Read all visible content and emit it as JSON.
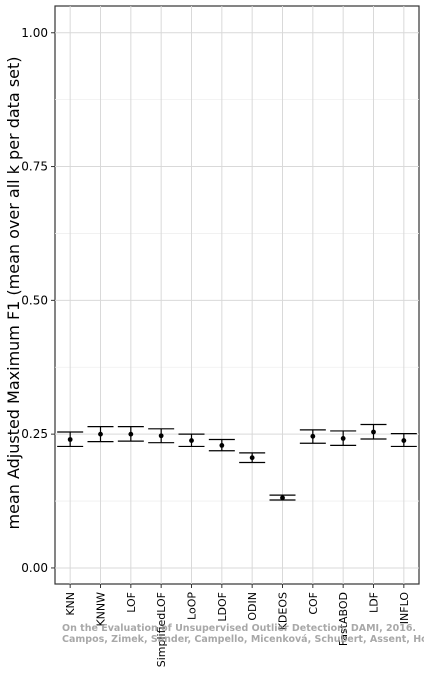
{
  "chart_data": {
    "type": "errorbar",
    "categories": [
      "KNN",
      "KNNW",
      "LOF",
      "SimplifiedLOF",
      "LoOP",
      "LDOF",
      "ODIN",
      "KDEOS",
      "COF",
      "FastABOD",
      "LDF",
      "INFLO"
    ],
    "mean": [
      0.24,
      0.25,
      0.25,
      0.247,
      0.238,
      0.229,
      0.206,
      0.131,
      0.246,
      0.242,
      0.254,
      0.238
    ],
    "lower": [
      0.227,
      0.236,
      0.237,
      0.234,
      0.227,
      0.219,
      0.197,
      0.127,
      0.233,
      0.229,
      0.241,
      0.227
    ],
    "upper": [
      0.254,
      0.264,
      0.264,
      0.26,
      0.25,
      0.24,
      0.215,
      0.136,
      0.258,
      0.256,
      0.268,
      0.251
    ],
    "ylabel": "mean Adjusted Maximum F1 (mean over all k per data set)",
    "xlabel": "",
    "ylim": [
      -0.03,
      1.05
    ],
    "yticks": [
      "0.00",
      "0.25",
      "0.50",
      "0.75",
      "1.00"
    ],
    "grid": true
  },
  "watermark": {
    "line1": "On the Evaluation of Unsupervised Outlier Detection, DAMI, 2016.",
    "line2": "Campos, Zimek, Sander, Campello, Micenková, Schubert, Assent, Houle"
  }
}
